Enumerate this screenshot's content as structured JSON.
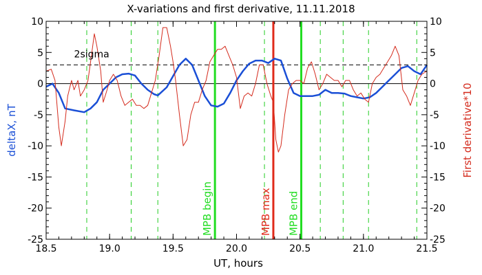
{
  "chart_data": {
    "type": "line",
    "title": "X-variations and first derivative, 11.11.2018",
    "xlabel": "UT, hours",
    "ylabel_left": "deltaX, nT",
    "ylabel_right": "First derivative*10",
    "xlim": [
      18.5,
      21.5
    ],
    "ylim": [
      -25,
      10
    ],
    "xticks": [
      18.5,
      19.0,
      19.5,
      20.0,
      20.5,
      21.0,
      21.5
    ],
    "xtick_labels": [
      "18.5",
      "19.0",
      "19.5",
      "20.0",
      "20.5",
      "21.0",
      "21.5"
    ],
    "yticks": [
      -25,
      -20,
      -15,
      -10,
      -5,
      0,
      5,
      10
    ],
    "ytick_labels": [
      "-25",
      "-20",
      "-15",
      "-10",
      "-5",
      "0",
      "5",
      "10"
    ],
    "grid": false,
    "colors": {
      "deltaX": "#1a4fd6",
      "derivative": "#d42a1c",
      "mpb_begin": "#22dd22",
      "mpb_max": "#e02a1a",
      "mpb_end": "#22dd22",
      "dashed_green": "#22cc22",
      "threshold": "#000000",
      "zero": "#000000",
      "left_axis_title": "#1a4fd6",
      "right_axis_title": "#d42a1c"
    },
    "threshold": {
      "label": "2sigma",
      "value": 3.0
    },
    "markers": [
      {
        "label": "MPB begin",
        "x": 19.83,
        "color": "#22dd22"
      },
      {
        "label": "MPB max",
        "x": 20.29,
        "color": "#e02a1a"
      },
      {
        "label": "MPB end",
        "x": 20.51,
        "color": "#22dd22"
      }
    ],
    "dashed_verticals": [
      18.82,
      19.17,
      19.38,
      20.22,
      20.66,
      20.84,
      21.04,
      21.42
    ],
    "series": [
      {
        "key": "deltaX",
        "x": [
          18.5,
          18.55,
          18.6,
          18.65,
          18.72,
          18.8,
          18.85,
          18.9,
          18.95,
          19.0,
          19.05,
          19.1,
          19.15,
          19.2,
          19.25,
          19.3,
          19.35,
          19.38,
          19.45,
          19.5,
          19.55,
          19.6,
          19.65,
          19.7,
          19.75,
          19.8,
          19.85,
          19.9,
          19.95,
          20.0,
          20.05,
          20.1,
          20.15,
          20.2,
          20.25,
          20.3,
          20.35,
          20.4,
          20.45,
          20.5,
          20.55,
          20.6,
          20.65,
          20.7,
          20.75,
          20.8,
          20.85,
          20.9,
          20.95,
          21.0,
          21.05,
          21.1,
          21.15,
          21.2,
          21.25,
          21.3,
          21.35,
          21.4,
          21.45,
          21.5
        ],
        "values": [
          -0.5,
          0.0,
          -1.5,
          -4.0,
          -4.3,
          -4.6,
          -4.0,
          -3.0,
          -1.0,
          0.0,
          1.0,
          1.5,
          1.6,
          1.3,
          0.0,
          -1.0,
          -1.7,
          -1.9,
          -0.6,
          1.2,
          3.0,
          4.0,
          3.0,
          0.5,
          -2.0,
          -3.5,
          -3.7,
          -3.2,
          -1.5,
          0.5,
          2.0,
          3.2,
          3.7,
          3.7,
          3.3,
          4.0,
          3.7,
          0.8,
          -1.5,
          -2.0,
          -2.0,
          -2.0,
          -1.8,
          -1.0,
          -1.5,
          -1.5,
          -1.6,
          -2.0,
          -2.2,
          -2.4,
          -2.2,
          -1.5,
          -0.5,
          0.5,
          1.5,
          2.5,
          2.8,
          2.0,
          1.5,
          3.0
        ]
      },
      {
        "key": "derivative",
        "x": [
          18.5,
          18.54,
          18.57,
          18.6,
          18.62,
          18.65,
          18.67,
          18.7,
          18.72,
          18.75,
          18.77,
          18.8,
          18.83,
          18.86,
          18.88,
          18.9,
          18.93,
          18.95,
          18.98,
          19.0,
          19.03,
          19.06,
          19.09,
          19.12,
          19.15,
          19.18,
          19.21,
          19.24,
          19.27,
          19.3,
          19.33,
          19.36,
          19.39,
          19.42,
          19.45,
          19.48,
          19.5,
          19.52,
          19.55,
          19.58,
          19.61,
          19.64,
          19.67,
          19.7,
          19.73,
          19.76,
          19.79,
          19.82,
          19.85,
          19.88,
          19.91,
          19.94,
          19.97,
          20.0,
          20.03,
          20.06,
          20.09,
          20.12,
          20.15,
          20.18,
          20.21,
          20.24,
          20.27,
          20.29,
          20.31,
          20.33,
          20.35,
          20.38,
          20.41,
          20.44,
          20.47,
          20.5,
          20.53,
          20.56,
          20.59,
          20.62,
          20.65,
          20.68,
          20.71,
          20.74,
          20.77,
          20.8,
          20.83,
          20.86,
          20.89,
          20.92,
          20.95,
          20.98,
          21.01,
          21.04,
          21.07,
          21.1,
          21.13,
          21.16,
          21.19,
          21.22,
          21.25,
          21.28,
          21.31,
          21.34,
          21.37,
          21.4,
          21.43,
          21.46,
          21.5
        ],
        "values": [
          2.0,
          2.3,
          0.5,
          -7.0,
          -10.0,
          -6.0,
          -2.0,
          0.5,
          -1.0,
          0.5,
          -2.0,
          -1.0,
          0.5,
          5.0,
          8.0,
          6.0,
          2.0,
          -3.0,
          -1.0,
          0.5,
          1.5,
          0.5,
          -2.0,
          -3.5,
          -3.0,
          -2.5,
          -3.5,
          -3.5,
          -4.0,
          -3.5,
          -1.5,
          0.5,
          4.5,
          9.0,
          9.0,
          6.0,
          3.5,
          0.5,
          -5.0,
          -10.0,
          -9.0,
          -5.0,
          -3.0,
          -3.0,
          -1.0,
          0.5,
          3.5,
          4.5,
          5.5,
          5.5,
          6.0,
          4.5,
          3.0,
          1.0,
          -4.0,
          -2.0,
          -1.5,
          -2.0,
          0.0,
          3.0,
          3.0,
          0.0,
          -2.0,
          -3.0,
          -9.0,
          -11.0,
          -10.0,
          -5.0,
          -1.0,
          0.0,
          0.5,
          0.5,
          0.0,
          2.5,
          3.5,
          1.5,
          -1.0,
          0.0,
          1.5,
          1.0,
          0.5,
          0.5,
          -0.5,
          0.5,
          0.5,
          -1.0,
          -2.0,
          -1.5,
          -2.5,
          -3.0,
          0.0,
          1.0,
          1.5,
          2.5,
          3.5,
          4.5,
          6.0,
          4.5,
          -1.0,
          -2.0,
          -3.5,
          -1.5,
          0.5,
          1.5,
          2.0
        ]
      }
    ]
  }
}
